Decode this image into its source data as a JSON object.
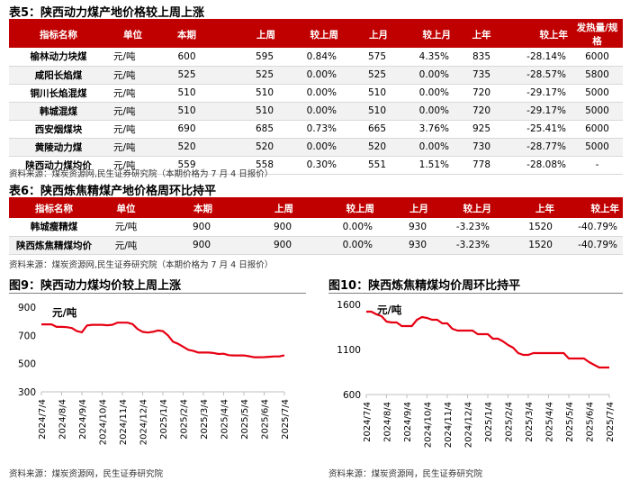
{
  "table5": {
    "caption": "表5：陕西动力煤产地价格较上周上涨",
    "headers": [
      "指标名称",
      "单位",
      "本期",
      "上周",
      "较上周",
      "上月",
      "较上月",
      "上年",
      "较上年",
      "发热量/规格"
    ],
    "rows": [
      [
        "榆林动力块煤",
        "元/吨",
        "600",
        "595",
        "0.84%",
        "575",
        "4.35%",
        "835",
        "-28.14%",
        "6000"
      ],
      [
        "咸阳长焰煤",
        "元/吨",
        "525",
        "525",
        "0.00%",
        "525",
        "0.00%",
        "735",
        "-28.57%",
        "5800"
      ],
      [
        "铜川长焰混煤",
        "元/吨",
        "510",
        "510",
        "0.00%",
        "510",
        "0.00%",
        "720",
        "-29.17%",
        "5000"
      ],
      [
        "韩城混煤",
        "元/吨",
        "510",
        "510",
        "0.00%",
        "510",
        "0.00%",
        "720",
        "-29.17%",
        "5000"
      ],
      [
        "西安烟煤块",
        "元/吨",
        "690",
        "685",
        "0.73%",
        "665",
        "3.76%",
        "925",
        "-25.41%",
        "6000"
      ],
      [
        "黄陵动力煤",
        "元/吨",
        "520",
        "520",
        "0.00%",
        "520",
        "0.00%",
        "730",
        "-28.77%",
        "5000"
      ],
      [
        "陕西动力煤均价",
        "元/吨",
        "559",
        "558",
        "0.30%",
        "551",
        "1.51%",
        "778",
        "-28.08%",
        "-"
      ]
    ],
    "source": "资料来源：煤炭资源网,民生证券研究院（本期价格为 7 月 4 日报价）"
  },
  "table6": {
    "caption": "表6：陕西炼焦精煤产地价格周环比持平",
    "headers": [
      "指标名称",
      "单位",
      "本期",
      "上周",
      "较上周",
      "上月",
      "较上月",
      "上年",
      "较上年"
    ],
    "rows": [
      [
        "韩城瘦精煤",
        "元/吨",
        "900",
        "900",
        "0.00%",
        "930",
        "-3.23%",
        "1520",
        "-40.79%"
      ],
      [
        "陕西炼焦精煤均价",
        "元/吨",
        "900",
        "900",
        "0.00%",
        "930",
        "-3.23%",
        "1520",
        "-40.79%"
      ]
    ],
    "source": "资料来源：煤炭资源网,民生证券研究院（本期价格为 7 月 4 日报价）"
  },
  "figure9": {
    "title": "图9：陕西动力煤均价较上周上涨",
    "source": "资料来源：煤炭资源网，民生证券研究院"
  },
  "figure10": {
    "title": "图10：陕西炼焦精煤均价周环比持平",
    "source": "资料来源：煤炭资源网，民生证券研究院"
  },
  "chart_data": [
    {
      "type": "line",
      "title": "图9：陕西动力煤均价较上周上涨",
      "ylabel": "元/吨",
      "ylim": [
        300,
        900
      ],
      "yticks": [
        300,
        500,
        700,
        900
      ],
      "x_tick_labels": [
        "2024/7/4",
        "2024/8/4",
        "2024/9/4",
        "2024/10/4",
        "2024/11/4",
        "2024/12/4",
        "2025/1/4",
        "2025/2/4",
        "2025/3/4",
        "2025/4/4",
        "2025/5/4",
        "2025/6/4",
        "2025/7/4"
      ],
      "line_color": "#e60012",
      "series": [
        {
          "name": "陕西动力煤均价",
          "x": [
            0,
            0.25,
            0.5,
            0.75,
            1,
            1.25,
            1.5,
            1.75,
            2,
            2.25,
            2.5,
            2.75,
            3,
            3.25,
            3.5,
            3.75,
            4,
            4.25,
            4.5,
            4.75,
            5,
            5.25,
            5.5,
            5.75,
            6,
            6.25,
            6.5,
            6.75,
            7,
            7.25,
            7.5,
            7.75,
            8,
            8.25,
            8.5,
            8.75,
            9,
            9.25,
            9.5,
            9.75,
            10,
            10.25,
            10.5,
            10.75,
            11,
            11.25,
            11.5,
            11.75,
            12
          ],
          "values": [
            778,
            778,
            778,
            760,
            760,
            758,
            752,
            730,
            722,
            770,
            775,
            775,
            775,
            772,
            775,
            790,
            790,
            790,
            780,
            745,
            725,
            720,
            725,
            735,
            730,
            700,
            655,
            640,
            620,
            598,
            590,
            578,
            578,
            578,
            575,
            568,
            570,
            560,
            558,
            558,
            558,
            552,
            545,
            545,
            546,
            548,
            551,
            551,
            559
          ]
        }
      ]
    },
    {
      "type": "line",
      "title": "图10：陕西炼焦精煤均价周环比持平",
      "ylabel": "元/吨",
      "ylim": [
        600,
        1600
      ],
      "yticks": [
        600,
        1100,
        1600
      ],
      "x_tick_labels": [
        "2024/7/4",
        "2024/8/4",
        "2024/9/4",
        "2024/10/4",
        "2024/11/4",
        "2024/12/4",
        "2025/1/4",
        "2025/2/4",
        "2025/3/4",
        "2025/4/4",
        "2025/5/4",
        "2025/6/4",
        "2025/7/4"
      ],
      "line_color": "#e60012",
      "series": [
        {
          "name": "陕西炼焦精煤均价",
          "x": [
            0,
            0.25,
            0.5,
            0.75,
            1,
            1.25,
            1.5,
            1.75,
            2,
            2.25,
            2.5,
            2.75,
            3,
            3.25,
            3.5,
            3.75,
            4,
            4.25,
            4.5,
            4.75,
            5,
            5.25,
            5.5,
            5.75,
            6,
            6.25,
            6.5,
            6.75,
            7,
            7.25,
            7.5,
            7.75,
            8,
            8.25,
            8.5,
            8.75,
            9,
            9.25,
            9.5,
            9.75,
            10,
            10.25,
            10.5,
            10.75,
            11,
            11.25,
            11.5,
            11.75,
            12
          ],
          "values": [
            1520,
            1520,
            1490,
            1470,
            1410,
            1400,
            1400,
            1360,
            1360,
            1360,
            1430,
            1460,
            1450,
            1430,
            1430,
            1390,
            1390,
            1330,
            1310,
            1310,
            1310,
            1310,
            1270,
            1270,
            1270,
            1220,
            1220,
            1190,
            1150,
            1120,
            1060,
            1040,
            1040,
            1060,
            1060,
            1060,
            1060,
            1060,
            1060,
            1060,
            1000,
            1000,
            1000,
            1000,
            960,
            930,
            900,
            900,
            900
          ]
        }
      ]
    }
  ]
}
